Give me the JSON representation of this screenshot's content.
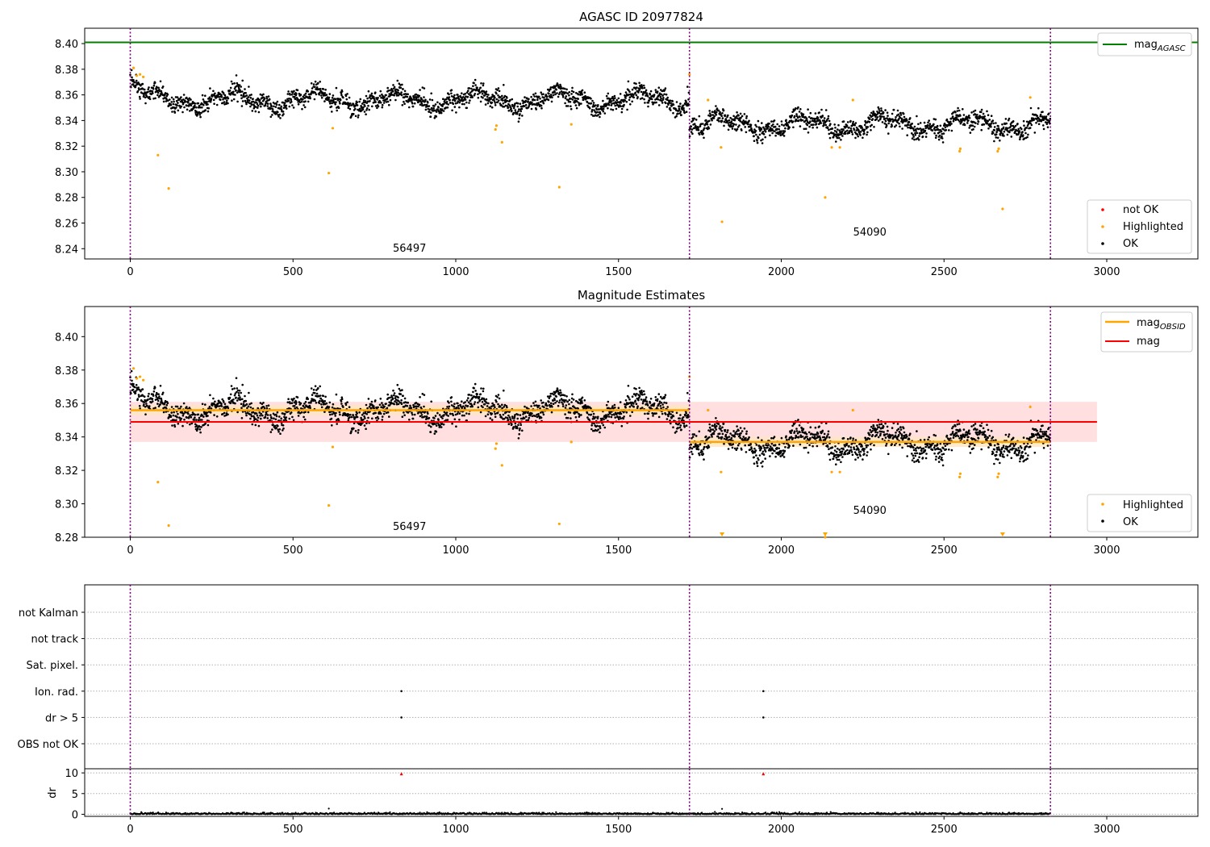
{
  "figure": {
    "panel1_title": "AGASC ID 20977824",
    "panel2_title": "Magnitude Estimates"
  },
  "chart_data": [
    {
      "type": "scatter",
      "title": "AGASC ID 20977824",
      "xlim": [
        -140,
        3280
      ],
      "ylim": [
        8.232,
        8.412
      ],
      "xticks": [
        "0",
        "500",
        "1000",
        "1500",
        "2000",
        "2500",
        "3000"
      ],
      "yticks": [
        "8.24",
        "8.26",
        "8.28",
        "8.30",
        "8.32",
        "8.34",
        "8.36",
        "8.38",
        "8.40"
      ],
      "grid": false,
      "legend_position": "top-right and bottom-right",
      "legend": [
        "mag_AGASC",
        "not OK",
        "Highlighted",
        "OK"
      ],
      "obs_boundaries": [
        0,
        1718,
        2827
      ],
      "observations": [
        {
          "obsid": "56497",
          "x_range": [
            0,
            1718
          ],
          "mean_mag": 8.356
        },
        {
          "obsid": "54090",
          "x_range": [
            1718,
            2827
          ],
          "mean_mag": 8.337
        }
      ],
      "mag_agasc": 8.401,
      "highlighted_points": [
        [
          10,
          8.381
        ],
        [
          20,
          8.375
        ],
        [
          30,
          8.376
        ],
        [
          40,
          8.374
        ],
        [
          85,
          8.313
        ],
        [
          118,
          8.287
        ],
        [
          610,
          8.299
        ],
        [
          622,
          8.334
        ],
        [
          1122,
          8.333
        ],
        [
          1125,
          8.336
        ],
        [
          1142,
          8.323
        ],
        [
          1318,
          8.288
        ],
        [
          1355,
          8.337
        ],
        [
          1718,
          8.376
        ],
        [
          1775,
          8.356
        ],
        [
          1815,
          8.319
        ],
        [
          1818,
          8.261
        ],
        [
          2135,
          8.28
        ],
        [
          2155,
          8.319
        ],
        [
          2180,
          8.319
        ],
        [
          2220,
          8.356
        ],
        [
          2548,
          8.316
        ],
        [
          2550,
          8.318
        ],
        [
          2665,
          8.316
        ],
        [
          2668,
          8.318
        ],
        [
          2680,
          8.271
        ],
        [
          2765,
          8.358
        ]
      ]
    },
    {
      "type": "scatter",
      "title": "Magnitude Estimates",
      "xlim": [
        -140,
        3280
      ],
      "ylim": [
        8.28,
        8.418
      ],
      "xticks": [
        "0",
        "500",
        "1000",
        "1500",
        "2000",
        "2500",
        "3000"
      ],
      "yticks": [
        "8.28",
        "8.30",
        "8.32",
        "8.34",
        "8.36",
        "8.38",
        "8.40"
      ],
      "grid": false,
      "legend": [
        "mag_OBSID",
        "mag",
        "Highlighted",
        "OK"
      ],
      "mag": 8.349,
      "mag_band": [
        8.337,
        8.361
      ],
      "mag_x_range": [
        0,
        2970
      ],
      "mag_obsid": [
        {
          "obsid": "56497",
          "value": 8.356,
          "band": [
            8.353,
            8.359
          ],
          "x_range": [
            0,
            1718
          ]
        },
        {
          "obsid": "54090",
          "value": 8.337,
          "band": [
            8.334,
            8.34
          ],
          "x_range": [
            1718,
            2827
          ]
        }
      ],
      "below_range_markers": [
        1818,
        2135,
        2680
      ]
    },
    {
      "type": "scatter",
      "title": "",
      "xlim": [
        -140,
        3280
      ],
      "flag_rows": [
        "not Kalman",
        "not track",
        "Sat. pixel.",
        "Ion. rad.",
        "dr > 5",
        "OBS not OK"
      ],
      "flag_events": [
        {
          "flag": "Ion. rad.",
          "x": [
            833,
            1945
          ]
        },
        {
          "flag": "dr > 5",
          "x": [
            833,
            1945
          ]
        }
      ]
    },
    {
      "type": "scatter",
      "title": "",
      "ylabel": "dr",
      "xlim": [
        -140,
        3280
      ],
      "ylim": [
        -0.5,
        11
      ],
      "xticks": [
        "0",
        "500",
        "1000",
        "1500",
        "2000",
        "2500",
        "3000"
      ],
      "yticks": [
        "0",
        "5",
        "10"
      ],
      "clipped_points": [
        833,
        1945
      ]
    }
  ],
  "legend_labels": {
    "mag_main": "mag",
    "agasc_sub": "AGASC",
    "obsid_sub": "OBSID",
    "mag": "mag",
    "not_ok": "not OK",
    "highlighted": "Highlighted",
    "ok": "OK"
  },
  "colors": {
    "ok": "#000000",
    "highlighted": "#ffa500",
    "not_ok": "#ff0000",
    "agasc_line": "#008000",
    "mag_line": "#ff0000",
    "mag_obsid_line": "#ffa500",
    "obs_boundary": "#800080",
    "band_red": "#ffd4d4",
    "band_orange": "#ffe6c2"
  }
}
